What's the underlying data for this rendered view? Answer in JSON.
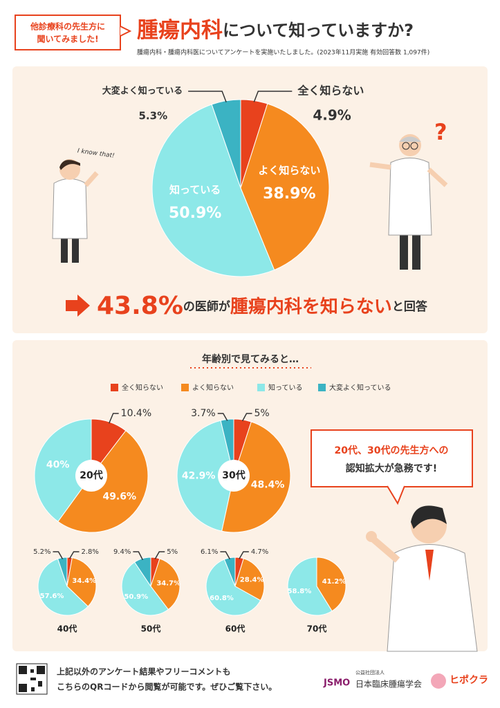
{
  "header": {
    "badge": [
      "他診療科の先生方に",
      "聞いてみました!"
    ],
    "title_highlight": "腫瘍内科",
    "title_rest": "について知っていますか?",
    "subtitle": "腫瘍内科・腫瘍内科医についてアンケートを実施いたしました。(2023年11月実施 有効回答数 1,097件)"
  },
  "illustration": {
    "speech": "I know that!",
    "question": "?"
  },
  "chart_data": [
    {
      "type": "pie",
      "categories": [
        "全く知らない",
        "よく知らない",
        "知っている",
        "大変よく知っている"
      ],
      "values": [
        4.9,
        38.9,
        50.9,
        5.3
      ],
      "value_labels": [
        "4.9%",
        "38.9%",
        "50.9%",
        "5.3%"
      ],
      "colors": [
        "#e8421d",
        "#f58a1f",
        "#8de8e8",
        "#3bb3c3"
      ]
    },
    {
      "type": "pie",
      "title": "20代",
      "values": [
        10.4,
        49.6,
        40
      ],
      "value_labels": [
        "10.4%",
        "49.6%",
        "40%"
      ],
      "colors": [
        "#e8421d",
        "#f58a1f",
        "#8de8e8"
      ]
    },
    {
      "type": "pie",
      "title": "30代",
      "values": [
        5,
        48.4,
        42.9,
        3.7
      ],
      "value_labels": [
        "5%",
        "48.4%",
        "42.9%",
        "3.7%"
      ],
      "colors": [
        "#e8421d",
        "#f58a1f",
        "#8de8e8",
        "#3bb3c3"
      ]
    },
    {
      "type": "pie",
      "title": "40代",
      "values": [
        2.8,
        34.4,
        57.6,
        5.2
      ],
      "value_labels": [
        "2.8%",
        "34.4%",
        "57.6%",
        "5.2%"
      ],
      "colors": [
        "#e8421d",
        "#f58a1f",
        "#8de8e8",
        "#3bb3c3"
      ]
    },
    {
      "type": "pie",
      "title": "50代",
      "values": [
        5,
        34.7,
        50.9,
        9.4
      ],
      "value_labels": [
        "5%",
        "34.7%",
        "50.9%",
        "9.4%"
      ],
      "colors": [
        "#e8421d",
        "#f58a1f",
        "#8de8e8",
        "#3bb3c3"
      ]
    },
    {
      "type": "pie",
      "title": "60代",
      "values": [
        4.7,
        28.4,
        60.8,
        6.1
      ],
      "value_labels": [
        "4.7%",
        "28.4%",
        "60.8%",
        "6.1%"
      ],
      "colors": [
        "#e8421d",
        "#f58a1f",
        "#8de8e8",
        "#3bb3c3"
      ]
    },
    {
      "type": "pie",
      "title": "70代",
      "values": [
        41.2,
        58.8
      ],
      "value_labels": [
        "41.2%",
        "58.8%"
      ],
      "colors": [
        "#f58a1f",
        "#8de8e8"
      ]
    }
  ],
  "headline": [
    "43.8%",
    "の医師が",
    "腫瘍内科を知らない",
    "と回答"
  ],
  "age_section": {
    "heading": "年齢別で見てみると…",
    "legend": [
      {
        "name": "全く知らない",
        "color": "#e8421d"
      },
      {
        "name": "よく知らない",
        "color": "#f58a1f"
      },
      {
        "name": "知っている",
        "color": "#8de8e8"
      },
      {
        "name": "大変よく知っている",
        "color": "#3bb3c3"
      }
    ]
  },
  "callout": [
    "20代、30代の先生方への",
    "認知拡大が急務です!"
  ],
  "footer": {
    "text": [
      "上記以外のアンケート結果やフリーコメントも",
      "こちらのQRコードから閲覧が可能です。ぜひご覧下さい。"
    ],
    "logo1_small": "公益社団法人",
    "logo1": "日本臨床腫瘍学会",
    "logo1_mark": "JSMO",
    "logo2": "ヒポクラ"
  }
}
